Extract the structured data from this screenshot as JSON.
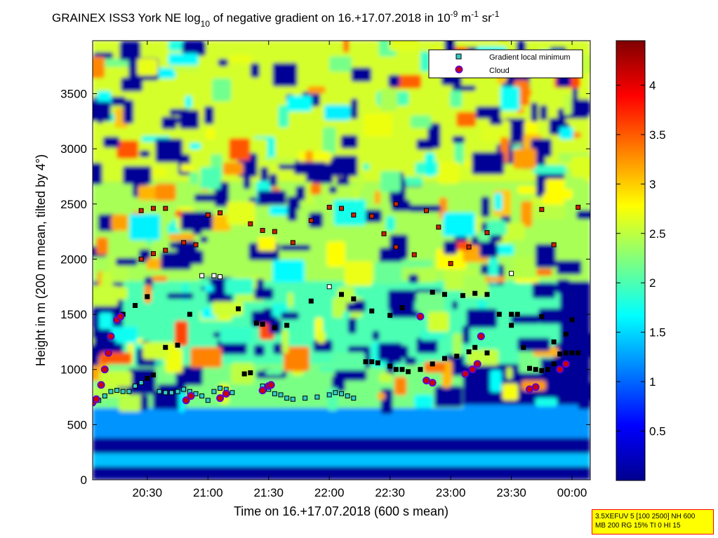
{
  "chart_data": {
    "type": "heatmap",
    "title": {
      "main": "GRAINEX ISS3 York NE log",
      "sub10": "10",
      "mid": " of negative gradient on 16.+17.07.2018 in 10",
      "exp1": "-9",
      "unit_m": " m",
      "exp2": "-1",
      "unit_sr": " sr",
      "exp3": "-1"
    },
    "xlabel": "Time on 16.+17.07.2018 (600 s mean)",
    "ylabel": "Height in m (200 m mean, tilted by 4°)",
    "x_ticks": [
      "20:30",
      "21:00",
      "21:30",
      "22:00",
      "22:30",
      "23:00",
      "23:30",
      "00:00"
    ],
    "x_tick_hours": [
      20.5,
      21.0,
      21.5,
      22.0,
      22.5,
      23.0,
      23.5,
      24.0
    ],
    "xlim_hours": [
      20.05,
      24.15
    ],
    "y_ticks": [
      "0",
      "500",
      "1000",
      "1500",
      "2000",
      "2500",
      "3000",
      "3500"
    ],
    "y_tick_values": [
      0,
      500,
      1000,
      1500,
      2000,
      2500,
      3000,
      3500
    ],
    "ylim": [
      0,
      3980
    ],
    "colorbar": {
      "ticks": [
        "0.5",
        "1",
        "1.5",
        "2",
        "2.5",
        "3",
        "3.5",
        "4"
      ],
      "tick_values": [
        0.5,
        1,
        1.5,
        2,
        2.5,
        3,
        3.5,
        4
      ],
      "range": [
        0,
        4.45
      ],
      "colormap": "jet"
    },
    "legend": {
      "placement": "top-right",
      "entries": [
        {
          "label": "Gradient local minimum",
          "marker": "square",
          "color": "#33cccc"
        },
        {
          "label": "Cloud",
          "marker": "circle",
          "color": "#cc0000",
          "edge": "#6600cc"
        }
      ]
    },
    "layers": [
      {
        "name": "background",
        "level": 0.1
      },
      {
        "name": "surface-layer",
        "from_h": 20.05,
        "to_h": 24.15,
        "from_y": 380,
        "to_y": 680,
        "level": 1.2
      },
      {
        "name": "low-band",
        "from_h": 20.05,
        "to_h": 24.15,
        "from_y": 120,
        "to_y": 240,
        "level": 1.4
      },
      {
        "name": "boundary-layer",
        "from_h": 20.05,
        "to_h": 23.1,
        "from_y": 650,
        "to_y": 1150,
        "level": 2.2
      },
      {
        "name": "mid-layer",
        "from_h": 20.3,
        "to_h": 23.9,
        "from_y": 1050,
        "to_y": 1900,
        "level": 2.0
      },
      {
        "name": "upper-layer",
        "from_h": 20.05,
        "to_h": 24.15,
        "from_y": 1800,
        "to_y": 2700,
        "level": 2.4
      },
      {
        "name": "top-layer",
        "from_h": 20.05,
        "to_h": 24.15,
        "from_y": 2700,
        "to_y": 3980,
        "level": 2.6
      }
    ],
    "series": [
      {
        "name": "Gradient local minimum",
        "points": [
          [
            20.1,
            720
          ],
          [
            20.15,
            760
          ],
          [
            20.2,
            800
          ],
          [
            20.25,
            810
          ],
          [
            20.3,
            800
          ],
          [
            20.35,
            800
          ],
          [
            20.4,
            850
          ],
          [
            20.45,
            880
          ],
          [
            20.5,
            920
          ],
          [
            20.55,
            950
          ],
          [
            20.6,
            800
          ],
          [
            20.65,
            790
          ],
          [
            20.7,
            790
          ],
          [
            20.75,
            800
          ],
          [
            20.8,
            820
          ],
          [
            20.85,
            800
          ],
          [
            20.9,
            780
          ],
          [
            20.95,
            760
          ],
          [
            21.0,
            720
          ],
          [
            21.05,
            800
          ],
          [
            21.1,
            830
          ],
          [
            21.15,
            820
          ],
          [
            21.2,
            790
          ],
          [
            21.3,
            960
          ],
          [
            21.35,
            970
          ],
          [
            21.45,
            850
          ],
          [
            21.5,
            820
          ],
          [
            21.55,
            780
          ],
          [
            21.6,
            770
          ],
          [
            21.65,
            740
          ],
          [
            21.7,
            730
          ],
          [
            21.8,
            740
          ],
          [
            21.9,
            750
          ],
          [
            22.0,
            770
          ],
          [
            22.05,
            790
          ],
          [
            22.1,
            780
          ],
          [
            22.15,
            760
          ],
          [
            22.2,
            740
          ],
          [
            22.3,
            1070
          ],
          [
            22.35,
            1070
          ],
          [
            22.4,
            1060
          ],
          [
            22.5,
            1030
          ],
          [
            22.55,
            1000
          ],
          [
            22.6,
            1000
          ],
          [
            22.65,
            980
          ],
          [
            22.75,
            1000
          ],
          [
            22.85,
            1050
          ],
          [
            22.95,
            1100
          ],
          [
            23.05,
            1120
          ],
          [
            23.15,
            1160
          ],
          [
            23.2,
            1200
          ],
          [
            23.3,
            1150
          ],
          [
            23.4,
            1500
          ],
          [
            23.5,
            1500
          ],
          [
            23.55,
            1500
          ],
          [
            23.65,
            1010
          ],
          [
            23.7,
            1000
          ],
          [
            23.75,
            990
          ],
          [
            23.8,
            1000
          ],
          [
            23.85,
            1050
          ],
          [
            23.9,
            1140
          ],
          [
            23.95,
            1150
          ],
          [
            24.0,
            1150
          ],
          [
            24.05,
            1150
          ],
          [
            20.3,
            1500
          ],
          [
            20.4,
            1580
          ],
          [
            20.5,
            1660
          ],
          [
            20.65,
            1200
          ],
          [
            20.75,
            1220
          ],
          [
            20.85,
            1500
          ],
          [
            20.95,
            1850
          ],
          [
            21.05,
            1850
          ],
          [
            21.1,
            1840
          ],
          [
            21.25,
            1550
          ],
          [
            21.4,
            1420
          ],
          [
            21.45,
            1410
          ],
          [
            21.55,
            1380
          ],
          [
            21.65,
            1400
          ],
          [
            21.85,
            1620
          ],
          [
            22.0,
            1750
          ],
          [
            22.1,
            1680
          ],
          [
            22.2,
            1640
          ],
          [
            22.35,
            1530
          ],
          [
            22.5,
            1490
          ],
          [
            22.6,
            1560
          ],
          [
            22.85,
            1700
          ],
          [
            22.95,
            1680
          ],
          [
            23.1,
            1670
          ],
          [
            23.2,
            1690
          ],
          [
            23.3,
            1680
          ],
          [
            23.5,
            1400
          ],
          [
            23.6,
            1200
          ],
          [
            23.75,
            1480
          ],
          [
            23.85,
            1250
          ],
          [
            23.95,
            1320
          ],
          [
            24.0,
            1450
          ],
          [
            20.45,
            2000
          ],
          [
            20.55,
            2050
          ],
          [
            20.65,
            2080
          ],
          [
            20.8,
            2150
          ],
          [
            20.9,
            2130
          ],
          [
            21.0,
            2400
          ],
          [
            21.1,
            2420
          ],
          [
            21.35,
            2320
          ],
          [
            21.45,
            2260
          ],
          [
            21.55,
            2250
          ],
          [
            21.7,
            2150
          ],
          [
            21.85,
            2350
          ],
          [
            22.0,
            2470
          ],
          [
            22.1,
            2460
          ],
          [
            22.2,
            2400
          ],
          [
            22.35,
            2390
          ],
          [
            22.45,
            2230
          ],
          [
            22.55,
            2110
          ],
          [
            22.7,
            2040
          ],
          [
            22.8,
            2440
          ],
          [
            22.9,
            2290
          ],
          [
            23.0,
            1960
          ],
          [
            23.15,
            2110
          ],
          [
            23.3,
            2240
          ],
          [
            23.5,
            1870
          ],
          [
            23.75,
            2450
          ],
          [
            23.85,
            2130
          ],
          [
            24.05,
            2470
          ],
          [
            20.45,
            2440
          ],
          [
            20.55,
            2460
          ],
          [
            20.65,
            2460
          ],
          [
            22.55,
            2500
          ]
        ]
      },
      {
        "name": "Cloud",
        "points": [
          [
            20.05,
            700
          ],
          [
            20.08,
            730
          ],
          [
            20.12,
            860
          ],
          [
            20.15,
            1000
          ],
          [
            20.18,
            1150
          ],
          [
            20.2,
            1300
          ],
          [
            20.25,
            1450
          ],
          [
            20.28,
            1480
          ],
          [
            20.82,
            720
          ],
          [
            20.86,
            760
          ],
          [
            21.1,
            740
          ],
          [
            21.15,
            780
          ],
          [
            21.45,
            810
          ],
          [
            21.5,
            850
          ],
          [
            21.52,
            860
          ],
          [
            22.75,
            1480
          ],
          [
            22.8,
            900
          ],
          [
            22.85,
            880
          ],
          [
            23.12,
            960
          ],
          [
            23.18,
            1000
          ],
          [
            23.22,
            1050
          ],
          [
            23.25,
            1300
          ],
          [
            23.65,
            820
          ],
          [
            23.7,
            840
          ],
          [
            23.9,
            1000
          ],
          [
            23.95,
            1050
          ]
        ]
      }
    ]
  },
  "info_box": {
    "line1": "3.5XEFUV 5 [100 2500] NH 600",
    "line2": "MB 200 RG 15% TI 0 HI 15",
    "bg_color": "#ffff00",
    "border_color": "#ff0000"
  }
}
